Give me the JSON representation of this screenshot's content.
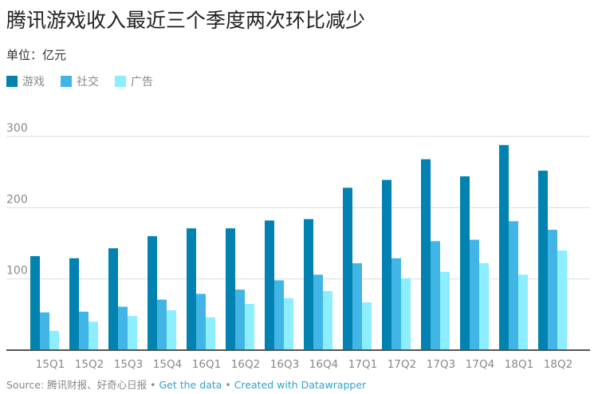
{
  "chart_data": {
    "type": "bar",
    "title": "腾讯游戏收入最近三个季度两次环比减少",
    "subtitle": "单位：亿元",
    "categories": [
      "15Q1",
      "15Q2",
      "15Q3",
      "15Q4",
      "16Q1",
      "16Q2",
      "16Q3",
      "16Q4",
      "17Q1",
      "17Q2",
      "17Q3",
      "17Q4",
      "18Q1",
      "18Q2"
    ],
    "series": [
      {
        "name": "游戏",
        "color": "#0182b0",
        "values": [
          132,
          129,
          143,
          160,
          171,
          171,
          182,
          184,
          228,
          239,
          268,
          244,
          288,
          252
        ]
      },
      {
        "name": "社交",
        "color": "#41b6e6",
        "values": [
          53,
          54,
          61,
          71,
          79,
          85,
          98,
          106,
          122,
          129,
          153,
          155,
          181,
          169
        ]
      },
      {
        "name": "广告",
        "color": "#8ceeff",
        "values": [
          27,
          40,
          48,
          56,
          46,
          65,
          73,
          83,
          67,
          101,
          110,
          122,
          106,
          140
        ]
      }
    ],
    "yticks": [
      100,
      200,
      300
    ],
    "ylim": [
      0,
      300
    ],
    "grid": true,
    "legend": "top-left"
  },
  "footer": {
    "source": "Source: 腾讯财报、好奇心日报",
    "sep": " • ",
    "get_data": "Get the data",
    "created": "Created with Datawrapper"
  }
}
